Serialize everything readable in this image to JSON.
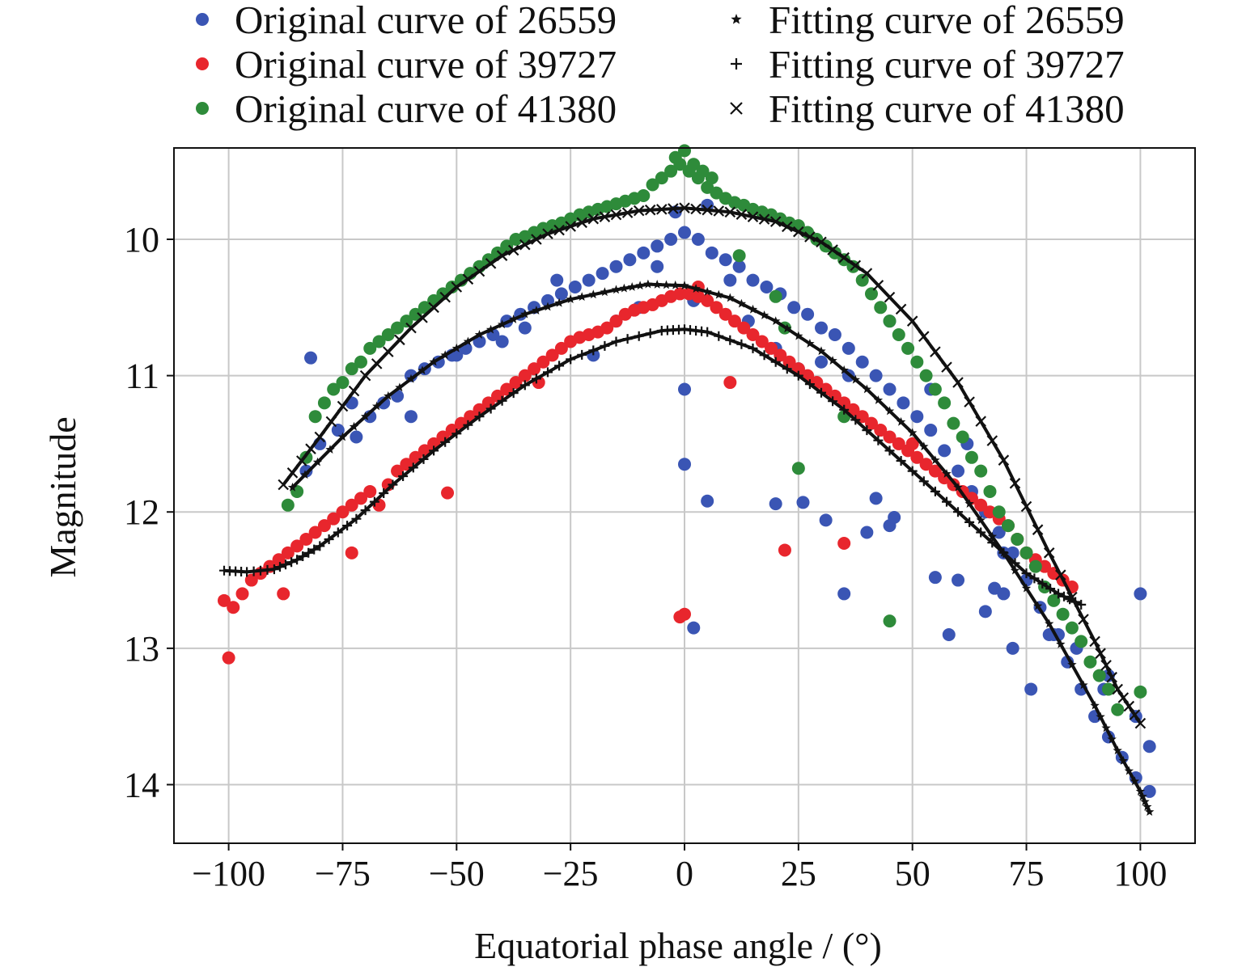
{
  "chart_data": {
    "type": "scatter",
    "title": "",
    "xlabel": "Equatorial phase angle / (°)",
    "ylabel": "Magnitude",
    "xlim": [
      -112,
      112
    ],
    "ylim": [
      14.43,
      9.33
    ],
    "y_axis_inverted": true,
    "grid": true,
    "legend_position": "top",
    "x_ticks": [
      -100,
      -75,
      -50,
      -25,
      0,
      25,
      50,
      75,
      100
    ],
    "x_tick_labels": [
      "−100",
      "−75",
      "−50",
      "−25",
      "0",
      "25",
      "50",
      "75",
      "100"
    ],
    "y_ticks": [
      10,
      11,
      12,
      13,
      14
    ],
    "y_tick_labels": [
      "10",
      "11",
      "12",
      "13",
      "14"
    ],
    "colors": {
      "blue": "#3a55b4",
      "red": "#e8262d",
      "green": "#2e8b3a",
      "black": "#111111",
      "grid": "#c8c8c8"
    },
    "series": [
      {
        "name": "Original curve of 26559",
        "kind": "points",
        "marker": "dot",
        "color": "#3a55b4",
        "x": [
          -83,
          -80,
          -76,
          -72,
          -69,
          -66,
          -63,
          -60,
          -57,
          -54,
          -51,
          -48,
          -45,
          -42,
          -39,
          -36,
          -33,
          -30,
          -27,
          -24,
          -21,
          -18,
          -15,
          -12,
          -9,
          -6,
          -3,
          0,
          3,
          6,
          9,
          12,
          15,
          18,
          21,
          24,
          27,
          30,
          33,
          36,
          39,
          42,
          45,
          48,
          51,
          54,
          57,
          60,
          63,
          66,
          69,
          72,
          75,
          78,
          81,
          84,
          87,
          90,
          93,
          96,
          99,
          102,
          -82,
          -73,
          -60,
          -50,
          -40,
          -35,
          -28,
          -20,
          -15,
          -10,
          -6,
          -2,
          2,
          5,
          10,
          14,
          20,
          25,
          30,
          36,
          45,
          54,
          62,
          70,
          82,
          92,
          99,
          0,
          0,
          2,
          5,
          20,
          26,
          31,
          35,
          40,
          42,
          45,
          46,
          55,
          58,
          60,
          66,
          68,
          70,
          72,
          76,
          80,
          86,
          93,
          100,
          102
        ],
        "y": [
          11.7,
          11.5,
          11.4,
          11.45,
          11.3,
          11.2,
          11.15,
          11.0,
          10.95,
          10.9,
          10.85,
          10.8,
          10.75,
          10.7,
          10.6,
          10.55,
          10.5,
          10.45,
          10.4,
          10.35,
          10.3,
          10.25,
          10.2,
          10.15,
          10.1,
          10.05,
          10.0,
          9.95,
          10.0,
          10.1,
          10.15,
          10.2,
          10.3,
          10.35,
          10.4,
          10.5,
          10.55,
          10.65,
          10.7,
          10.8,
          10.9,
          11.0,
          11.1,
          11.2,
          11.3,
          11.4,
          11.55,
          11.7,
          11.85,
          12.0,
          12.15,
          12.3,
          12.5,
          12.7,
          12.9,
          13.1,
          13.3,
          13.5,
          13.65,
          13.8,
          13.95,
          14.05,
          10.87,
          11.2,
          11.3,
          10.85,
          10.75,
          10.65,
          10.3,
          10.85,
          10.6,
          10.5,
          10.2,
          9.8,
          10.45,
          9.75,
          10.3,
          10.6,
          10.8,
          10.95,
          10.9,
          11.0,
          10.6,
          11.1,
          11.5,
          12.3,
          12.9,
          13.3,
          13.5,
          11.1,
          11.65,
          12.85,
          11.92,
          11.94,
          11.93,
          12.06,
          12.6,
          12.15,
          11.9,
          12.1,
          12.04,
          12.48,
          12.9,
          12.5,
          12.73,
          12.56,
          12.6,
          13.0,
          13.3,
          12.9,
          13.0,
          13.2,
          12.6,
          13.72
        ]
      },
      {
        "name": "Original curve of 39727",
        "kind": "points",
        "marker": "dot",
        "color": "#e8262d",
        "x": [
          -101,
          -99,
          -97,
          -95,
          -93,
          -91,
          -89,
          -87,
          -85,
          -83,
          -81,
          -79,
          -77,
          -75,
          -73,
          -71,
          -69,
          -67,
          -65,
          -63,
          -61,
          -59,
          -57,
          -55,
          -53,
          -51,
          -49,
          -47,
          -45,
          -43,
          -41,
          -39,
          -37,
          -35,
          -33,
          -31,
          -29,
          -27,
          -25,
          -23,
          -21,
          -19,
          -17,
          -15,
          -13,
          -11,
          -9,
          -7,
          -5,
          -3,
          -1,
          1,
          3,
          5,
          7,
          9,
          11,
          13,
          15,
          17,
          19,
          21,
          23,
          25,
          27,
          29,
          31,
          33,
          35,
          37,
          39,
          41,
          43,
          45,
          47,
          49,
          51,
          53,
          55,
          57,
          59,
          61,
          63,
          65,
          67,
          69,
          71,
          73,
          75,
          77,
          79,
          81,
          83,
          85,
          -100,
          -88,
          -73,
          -52,
          0,
          -1,
          3,
          10,
          22,
          35,
          -32,
          50
        ],
        "y": [
          12.65,
          12.7,
          12.6,
          12.5,
          12.45,
          12.4,
          12.35,
          12.3,
          12.25,
          12.2,
          12.15,
          12.1,
          12.05,
          12.0,
          11.95,
          11.9,
          11.85,
          11.95,
          11.8,
          11.7,
          11.65,
          11.6,
          11.55,
          11.5,
          11.45,
          11.4,
          11.35,
          11.3,
          11.25,
          11.2,
          11.15,
          11.1,
          11.05,
          11.0,
          10.95,
          10.9,
          10.85,
          10.8,
          10.75,
          10.72,
          10.7,
          10.68,
          10.65,
          10.6,
          10.55,
          10.52,
          10.5,
          10.48,
          10.45,
          10.42,
          10.4,
          10.4,
          10.42,
          10.45,
          10.5,
          10.55,
          10.6,
          10.65,
          10.7,
          10.75,
          10.8,
          10.85,
          10.9,
          10.95,
          11.0,
          11.05,
          11.1,
          11.15,
          11.2,
          11.25,
          11.3,
          11.35,
          11.4,
          11.45,
          11.5,
          11.55,
          11.6,
          11.65,
          11.7,
          11.75,
          11.8,
          11.85,
          11.9,
          11.95,
          12.0,
          12.05,
          12.1,
          12.2,
          12.3,
          12.35,
          12.4,
          12.45,
          12.5,
          12.55,
          13.07,
          12.6,
          12.3,
          11.86,
          12.75,
          12.77,
          10.35,
          11.05,
          12.28,
          12.23,
          11.05,
          11.5
        ]
      },
      {
        "name": "Original curve of 41380",
        "kind": "points",
        "marker": "dot",
        "color": "#2e8b3a",
        "x": [
          -87,
          -85,
          -83,
          -81,
          -79,
          -77,
          -75,
          -73,
          -71,
          -69,
          -67,
          -65,
          -63,
          -61,
          -59,
          -57,
          -55,
          -53,
          -51,
          -49,
          -47,
          -45,
          -43,
          -41,
          -39,
          -37,
          -35,
          -33,
          -31,
          -29,
          -27,
          -25,
          -23,
          -21,
          -19,
          -17,
          -15,
          -13,
          -11,
          -9,
          -7,
          -5,
          -3,
          -1,
          1,
          3,
          5,
          7,
          9,
          11,
          13,
          15,
          17,
          19,
          21,
          23,
          25,
          27,
          29,
          31,
          33,
          35,
          37,
          39,
          41,
          43,
          45,
          47,
          49,
          51,
          53,
          55,
          57,
          59,
          61,
          63,
          65,
          67,
          69,
          71,
          73,
          75,
          77,
          79,
          81,
          83,
          85,
          87,
          89,
          91,
          93,
          95,
          -2,
          0,
          2,
          4,
          6,
          20,
          22,
          25,
          45,
          100,
          12,
          35
        ],
        "y": [
          11.95,
          11.85,
          11.6,
          11.3,
          11.2,
          11.1,
          11.05,
          10.95,
          10.9,
          10.8,
          10.75,
          10.7,
          10.65,
          10.6,
          10.55,
          10.5,
          10.45,
          10.4,
          10.35,
          10.3,
          10.25,
          10.2,
          10.15,
          10.1,
          10.05,
          10.0,
          9.98,
          9.95,
          9.92,
          9.9,
          9.88,
          9.85,
          9.82,
          9.8,
          9.78,
          9.76,
          9.74,
          9.72,
          9.7,
          9.68,
          9.6,
          9.55,
          9.5,
          9.45,
          9.5,
          9.55,
          9.62,
          9.66,
          9.7,
          9.73,
          9.75,
          9.78,
          9.8,
          9.82,
          9.85,
          9.88,
          9.9,
          9.95,
          10.0,
          10.05,
          10.1,
          10.15,
          10.2,
          10.3,
          10.4,
          10.5,
          10.6,
          10.7,
          10.8,
          10.9,
          11.0,
          11.1,
          11.2,
          11.35,
          11.45,
          11.6,
          11.7,
          11.85,
          12.0,
          12.1,
          12.2,
          12.3,
          12.4,
          12.55,
          12.65,
          12.75,
          12.85,
          12.95,
          13.1,
          13.2,
          13.3,
          13.45,
          9.4,
          9.35,
          9.45,
          9.5,
          9.55,
          10.42,
          10.65,
          11.68,
          12.8,
          13.32,
          10.12,
          11.3
        ]
      },
      {
        "name": "Fitting curve of 26559",
        "kind": "fit",
        "marker": "star",
        "color": "#111111",
        "x": [
          -86,
          -75,
          -65,
          -55,
          -45,
          -35,
          -25,
          -15,
          -8,
          0,
          10,
          20,
          30,
          40,
          50,
          60,
          70,
          80,
          90,
          95,
          100,
          102
        ],
        "y": [
          11.82,
          11.45,
          11.15,
          10.9,
          10.7,
          10.55,
          10.44,
          10.37,
          10.33,
          10.34,
          10.43,
          10.6,
          10.82,
          11.1,
          11.42,
          11.82,
          12.3,
          12.82,
          13.42,
          13.75,
          14.05,
          14.2
        ]
      },
      {
        "name": "Fitting curve of 39727",
        "kind": "fit",
        "marker": "plus",
        "color": "#111111",
        "x": [
          -101,
          -96,
          -90,
          -85,
          -80,
          -72,
          -64,
          -55,
          -45,
          -35,
          -25,
          -15,
          -5,
          0,
          5,
          15,
          25,
          35,
          45,
          55,
          65,
          75,
          82,
          87
        ],
        "y": [
          12.43,
          12.44,
          12.42,
          12.35,
          12.25,
          12.05,
          11.8,
          11.55,
          11.3,
          11.07,
          10.88,
          10.75,
          10.67,
          10.66,
          10.68,
          10.8,
          11.0,
          11.25,
          11.55,
          11.85,
          12.15,
          12.45,
          12.6,
          12.68
        ]
      },
      {
        "name": "Fitting curve of 41380",
        "kind": "fit",
        "marker": "cross",
        "color": "#111111",
        "x": [
          -88,
          -80,
          -70,
          -60,
          -50,
          -40,
          -30,
          -20,
          -10,
          0,
          10,
          20,
          30,
          40,
          50,
          60,
          70,
          80,
          90,
          95,
          100
        ],
        "y": [
          11.8,
          11.45,
          11.0,
          10.65,
          10.35,
          10.12,
          9.96,
          9.85,
          9.79,
          9.77,
          9.8,
          9.87,
          10.02,
          10.25,
          10.6,
          11.05,
          11.62,
          12.3,
          12.95,
          13.3,
          13.55
        ]
      }
    ]
  }
}
